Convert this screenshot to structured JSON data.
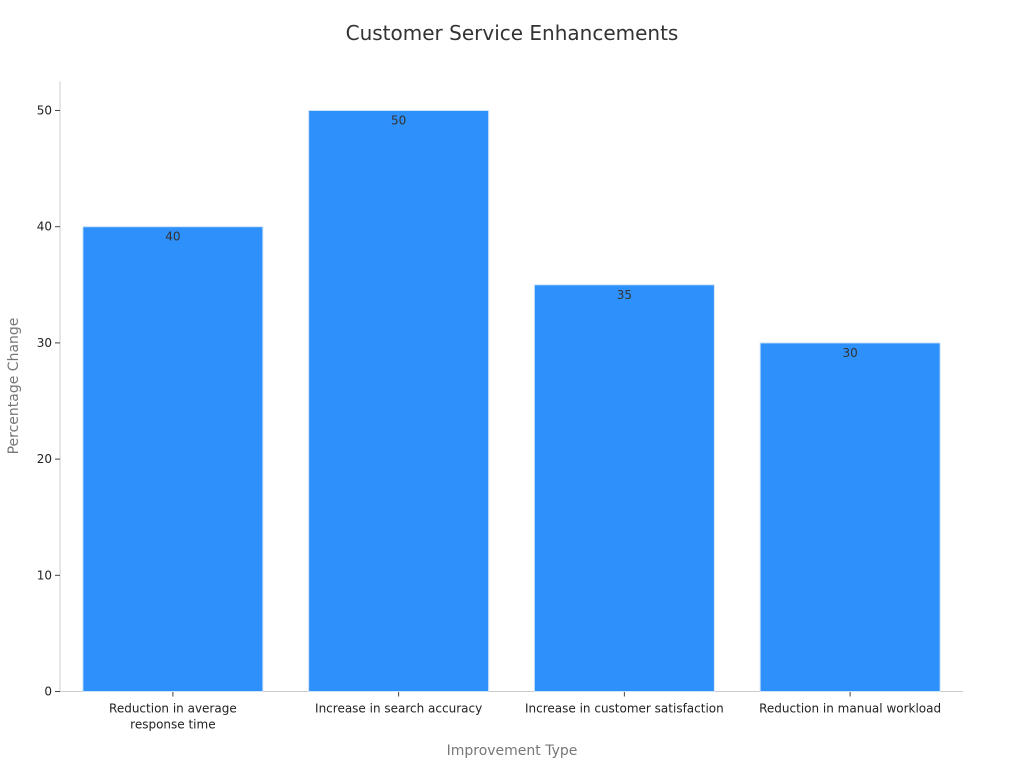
{
  "chart_data": {
    "type": "bar",
    "title": "Customer Service Enhancements",
    "xlabel": "Improvement Type",
    "ylabel": "Percentage Change",
    "categories": [
      [
        "Reduction in average",
        "response time"
      ],
      [
        "Increase in search accuracy"
      ],
      [
        "Increase in customer satisfaction"
      ],
      [
        "Reduction in manual workload"
      ]
    ],
    "values": [
      40,
      50,
      35,
      30
    ],
    "yticks": [
      0,
      10,
      20,
      30,
      40,
      50
    ],
    "ylim": [
      0,
      52.5
    ],
    "grid": false,
    "bar_color": "#2e90fa",
    "bar_edge_color": "#cfe3fb"
  }
}
